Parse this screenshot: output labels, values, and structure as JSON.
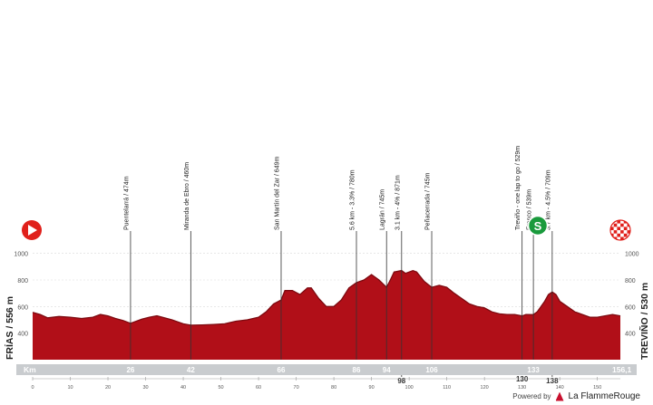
{
  "start": {
    "name": "FRÍAS / 556 m",
    "icon": "play-icon",
    "color": "#e0201b"
  },
  "finish": {
    "name": "TREVIÑO / 530 m",
    "icon": "checkered-flag-icon"
  },
  "sprint": {
    "icon": "sprint-s-icon",
    "letter": "S",
    "color": "#1a9a3c"
  },
  "km_label": "Km",
  "total_km": "156,1",
  "credit": {
    "prefix": "Powered by",
    "brand": "La FlammeRouge"
  },
  "colors": {
    "profile": "#b10f18",
    "profile_dark": "#7d0a10",
    "km_bar": "#c9cccf",
    "axis": "#555555"
  },
  "chart_data": {
    "type": "area",
    "xlim": [
      0,
      156.1
    ],
    "ylim": [
      200,
      1100
    ],
    "y_ticks": [
      400,
      600,
      800,
      1000
    ],
    "x_ticks": [
      0,
      10,
      20,
      30,
      40,
      50,
      60,
      70,
      80,
      90,
      100,
      110,
      120,
      130,
      140,
      150
    ],
    "profile": [
      [
        0,
        556
      ],
      [
        2,
        540
      ],
      [
        4,
        515
      ],
      [
        7,
        525
      ],
      [
        10,
        520
      ],
      [
        13,
        510
      ],
      [
        16,
        520
      ],
      [
        18,
        540
      ],
      [
        20,
        530
      ],
      [
        22,
        510
      ],
      [
        24,
        495
      ],
      [
        26,
        474
      ],
      [
        29,
        505
      ],
      [
        31,
        520
      ],
      [
        33,
        530
      ],
      [
        35,
        515
      ],
      [
        37,
        500
      ],
      [
        40,
        470
      ],
      [
        42,
        460
      ],
      [
        45,
        462
      ],
      [
        48,
        465
      ],
      [
        51,
        470
      ],
      [
        54,
        490
      ],
      [
        57,
        500
      ],
      [
        60,
        520
      ],
      [
        62,
        560
      ],
      [
        64,
        620
      ],
      [
        66,
        649
      ],
      [
        67,
        720
      ],
      [
        69,
        720
      ],
      [
        71,
        690
      ],
      [
        73,
        740
      ],
      [
        74,
        740
      ],
      [
        76,
        660
      ],
      [
        78,
        600
      ],
      [
        80,
        600
      ],
      [
        82,
        650
      ],
      [
        84,
        740
      ],
      [
        86,
        780
      ],
      [
        88,
        800
      ],
      [
        90,
        840
      ],
      [
        92,
        800
      ],
      [
        94,
        745
      ],
      [
        95,
        800
      ],
      [
        96,
        860
      ],
      [
        98,
        871
      ],
      [
        99,
        850
      ],
      [
        101,
        870
      ],
      [
        102,
        860
      ],
      [
        104,
        790
      ],
      [
        106,
        745
      ],
      [
        108,
        760
      ],
      [
        110,
        745
      ],
      [
        112,
        700
      ],
      [
        114,
        660
      ],
      [
        116,
        620
      ],
      [
        118,
        600
      ],
      [
        120,
        590
      ],
      [
        122,
        560
      ],
      [
        124,
        545
      ],
      [
        126,
        540
      ],
      [
        128,
        540
      ],
      [
        130,
        529
      ],
      [
        131,
        540
      ],
      [
        133,
        539
      ],
      [
        134,
        560
      ],
      [
        136,
        640
      ],
      [
        137,
        690
      ],
      [
        138,
        709
      ],
      [
        139,
        690
      ],
      [
        140,
        640
      ],
      [
        142,
        600
      ],
      [
        144,
        560
      ],
      [
        146,
        540
      ],
      [
        148,
        520
      ],
      [
        150,
        520
      ],
      [
        152,
        530
      ],
      [
        154,
        540
      ],
      [
        156.1,
        530
      ]
    ],
    "landmarks": [
      {
        "km": 26,
        "label": "Puentelarrá / 474m",
        "km_label": "26"
      },
      {
        "km": 42,
        "label": "Miranda de Ebro / 460m",
        "km_label": "42"
      },
      {
        "km": 66,
        "label": "San Martín del Zar / 649m",
        "km_label": "66"
      },
      {
        "km": 86,
        "label": "5.6 km - 3.3% / 780m",
        "km_label": "86"
      },
      {
        "km": 94,
        "label": "Lagrán / 745m",
        "km_label": "94"
      },
      {
        "km": 98,
        "label": "3.1 km - 4% / 871m",
        "km_label": "98"
      },
      {
        "km": 106,
        "label": "Peñacerrada / 745m",
        "km_label": "106"
      },
      {
        "km": 130,
        "label": "Treviño - one lap to go / 529m",
        "km_label": "130"
      },
      {
        "km": 133,
        "label": "Franco / 539m",
        "km_label": "133"
      },
      {
        "km": 138,
        "label": "3.7 km - 4.5% / 709m",
        "km_label": "138"
      }
    ]
  }
}
